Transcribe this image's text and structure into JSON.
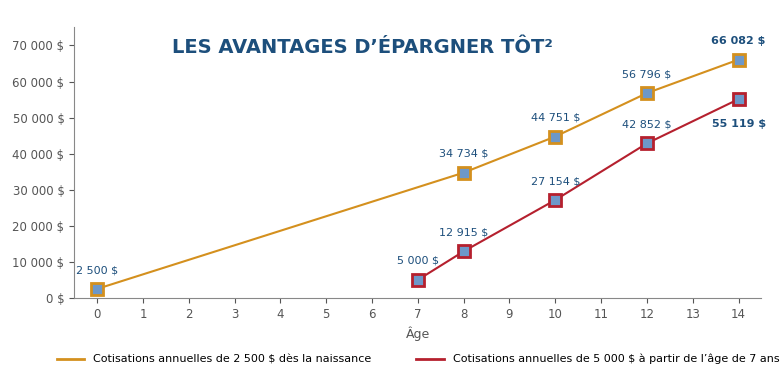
{
  "chart_data": {
    "type": "line",
    "title": "LES AVANTAGES D’ÉPARGNER TÔT²",
    "x_label": "Âge",
    "xlim": [
      -0.5,
      14.5
    ],
    "xticks": [
      0,
      1,
      2,
      3,
      4,
      5,
      6,
      7,
      8,
      9,
      10,
      11,
      12,
      13,
      14
    ],
    "ylim": [
      0,
      75000
    ],
    "yticks": [
      {
        "value": 0,
        "label": "0 $"
      },
      {
        "value": 10000,
        "label": "10 000 $"
      },
      {
        "value": 20000,
        "label": "20 000 $"
      },
      {
        "value": 30000,
        "label": "30 000 $"
      },
      {
        "value": 40000,
        "label": "40 000 $"
      },
      {
        "value": 50000,
        "label": "50 000 $"
      },
      {
        "value": 60000,
        "label": "60 000 $"
      },
      {
        "value": 70000,
        "label": "70 000 $"
      }
    ],
    "grid": false,
    "legend": "bottom",
    "data_labels": true,
    "marker": "square",
    "line_style": "solid",
    "series": [
      {
        "name": "Cotisations annuelles de 2 500 $ dès la naissance",
        "color": "#d4901e",
        "x": [
          0,
          8,
          10,
          12,
          14
        ],
        "values": [
          2500,
          34734,
          44751,
          56796,
          66082
        ],
        "value_labels": [
          "2 500 $",
          "34 734 $",
          "44 751 $",
          "56 796 $",
          "66 082 $"
        ]
      },
      {
        "name": "Cotisations annuelles de 5 000 $ à partir de l’âge de 7 ans",
        "color": "#b5202e",
        "x": [
          7,
          8,
          10,
          12,
          14
        ],
        "values": [
          5000,
          12915,
          27154,
          42852,
          55119
        ],
        "value_labels": [
          "5 000 $",
          "12 915 $",
          "27 154 $",
          "42 852 $",
          "55 119 $"
        ]
      }
    ]
  }
}
